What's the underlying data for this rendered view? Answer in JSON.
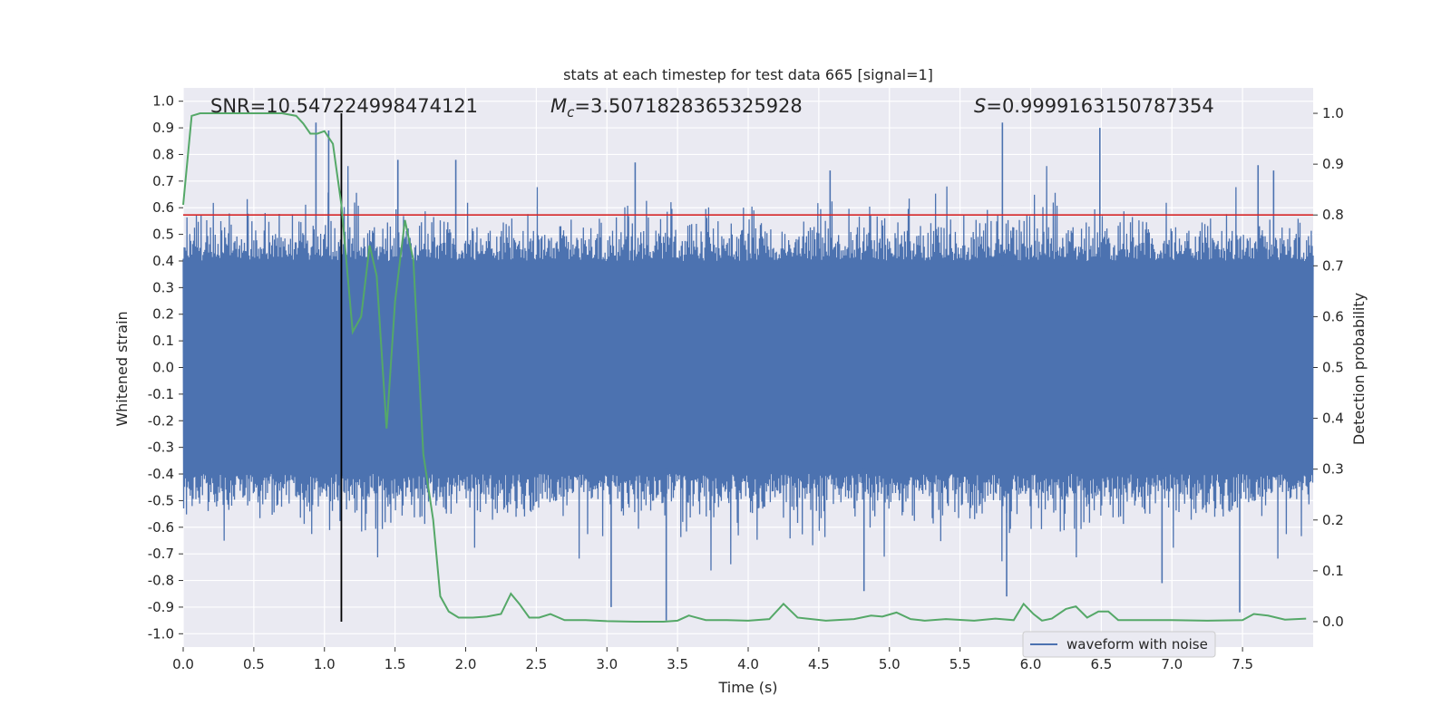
{
  "chart_data": {
    "type": "line",
    "title": "stats at each timestep for test data 665 [signal=1]",
    "xlabel": "Time (s)",
    "ylabel": "Whitened strain",
    "y2label": "Detection probability",
    "xlim": [
      0.0,
      8.0
    ],
    "ylim": [
      -1.05,
      1.05
    ],
    "y2lim": [
      -0.05,
      1.05
    ],
    "x_ticks": [
      "0.0",
      "0.5",
      "1.0",
      "1.5",
      "2.0",
      "2.5",
      "3.0",
      "3.5",
      "4.0",
      "4.5",
      "5.0",
      "5.5",
      "6.0",
      "6.5",
      "7.0",
      "7.5"
    ],
    "y_ticks": [
      "-1.0",
      "-0.9",
      "-0.8",
      "-0.7",
      "-0.6",
      "-0.5",
      "-0.4",
      "-0.3",
      "-0.2",
      "-0.1",
      "0.0",
      "0.1",
      "0.2",
      "0.3",
      "0.4",
      "0.5",
      "0.6",
      "0.7",
      "0.8",
      "0.9",
      "1.0"
    ],
    "y2_ticks": [
      "0.0",
      "0.1",
      "0.2",
      "0.3",
      "0.4",
      "0.5",
      "0.6",
      "0.7",
      "0.8",
      "0.9",
      "1.0"
    ],
    "grid": true,
    "legend": {
      "placement": "lower-right",
      "entries": [
        "waveform with noise"
      ]
    },
    "annotations": {
      "snr": "SNR=10.547224998474121",
      "mc_symbol": "M",
      "mc_sub": "c",
      "mc_value": "=3.5071828365325928",
      "s_symbol": "S",
      "s_value": "=0.9999163150787354"
    },
    "threshold_line": {
      "axis": "right",
      "y": 0.8,
      "color": "#d62728"
    },
    "marker_line": {
      "x": 1.12,
      "color": "#000000"
    },
    "series": [
      {
        "name": "waveform with noise",
        "axis": "left",
        "color": "#4c72b0",
        "kind": "noisy-strain",
        "envelope_core": 0.4,
        "peaks": [
          [
            0.94,
            0.92
          ],
          [
            1.03,
            0.89
          ],
          [
            1.52,
            0.78
          ],
          [
            1.93,
            0.78
          ],
          [
            3.2,
            0.77
          ],
          [
            4.58,
            0.74
          ],
          [
            5.8,
            0.92
          ],
          [
            6.49,
            0.9
          ],
          [
            7.61,
            0.76
          ],
          [
            7.72,
            0.74
          ],
          [
            3.03,
            -0.9
          ],
          [
            3.42,
            -0.95
          ],
          [
            5.83,
            -0.86
          ],
          [
            6.93,
            -0.81
          ],
          [
            7.48,
            -0.92
          ],
          [
            4.82,
            -0.84
          ]
        ]
      },
      {
        "name": "detection probability",
        "axis": "right",
        "color": "#55a868",
        "x": [
          0.0,
          0.06,
          0.12,
          0.2,
          0.3,
          0.4,
          0.5,
          0.6,
          0.7,
          0.8,
          0.85,
          0.9,
          0.95,
          1.0,
          1.06,
          1.12,
          1.2,
          1.26,
          1.32,
          1.37,
          1.44,
          1.5,
          1.57,
          1.63,
          1.7,
          1.77,
          1.82,
          1.88,
          1.95,
          2.05,
          2.15,
          2.25,
          2.32,
          2.38,
          2.45,
          2.52,
          2.6,
          2.7,
          2.85,
          3.0,
          3.2,
          3.4,
          3.5,
          3.58,
          3.7,
          3.85,
          4.0,
          4.15,
          4.25,
          4.35,
          4.55,
          4.75,
          4.87,
          4.95,
          5.05,
          5.15,
          5.25,
          5.4,
          5.6,
          5.75,
          5.88,
          5.95,
          6.02,
          6.08,
          6.15,
          6.25,
          6.32,
          6.4,
          6.48,
          6.55,
          6.62,
          6.75,
          7.0,
          7.25,
          7.5,
          7.58,
          7.68,
          7.8,
          7.95
        ],
        "y": [
          0.82,
          0.995,
          1.0,
          1.0,
          1.0,
          1.0,
          1.0,
          1.0,
          1.0,
          0.995,
          0.98,
          0.96,
          0.96,
          0.965,
          0.94,
          0.82,
          0.57,
          0.6,
          0.74,
          0.68,
          0.38,
          0.63,
          0.79,
          0.71,
          0.33,
          0.2,
          0.05,
          0.02,
          0.008,
          0.008,
          0.01,
          0.015,
          0.055,
          0.035,
          0.008,
          0.008,
          0.015,
          0.003,
          0.003,
          0.001,
          0.0,
          0.0,
          0.002,
          0.012,
          0.003,
          0.003,
          0.002,
          0.005,
          0.035,
          0.008,
          0.002,
          0.005,
          0.012,
          0.01,
          0.018,
          0.005,
          0.002,
          0.005,
          0.002,
          0.006,
          0.003,
          0.035,
          0.015,
          0.002,
          0.006,
          0.025,
          0.03,
          0.008,
          0.02,
          0.02,
          0.003,
          0.003,
          0.003,
          0.002,
          0.003,
          0.015,
          0.012,
          0.004,
          0.006
        ]
      }
    ]
  }
}
